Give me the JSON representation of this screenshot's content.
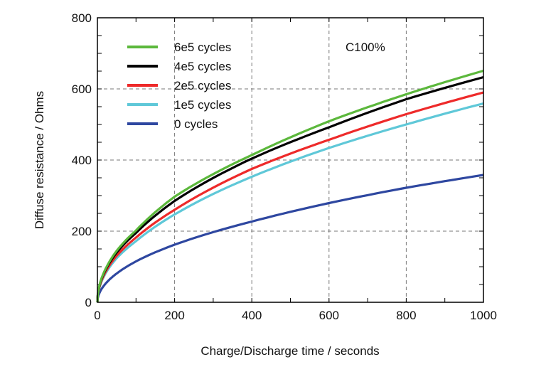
{
  "chart_data": {
    "type": "line",
    "title": "",
    "annotation": "C100%",
    "xlabel": "Charge/Discharge time /  seconds",
    "ylabel": "Diffuse resistance /  Ohms",
    "xlim": [
      0,
      1000
    ],
    "ylim": [
      0,
      800
    ],
    "xticks": [
      0,
      200,
      400,
      600,
      800,
      1000
    ],
    "yticks": [
      0,
      200,
      400,
      600,
      800
    ],
    "grid": true,
    "legend_position": "top-left",
    "x": [
      0,
      10,
      25,
      50,
      100,
      200,
      400,
      600,
      800,
      1000
    ],
    "series": [
      {
        "name": "6e5 cycles",
        "color": "#5cb83c",
        "values": [
          0,
          65,
          102,
          145,
          202,
          297,
          414,
          509,
          585,
          651
        ]
      },
      {
        "name": "4e5 cycles",
        "color": "#000000",
        "values": [
          0,
          63,
          99,
          140,
          195,
          285,
          404,
          492,
          571,
          633
        ]
      },
      {
        "name": "2e5 cycles",
        "color": "#ee2a2a",
        "values": [
          0,
          59,
          93,
          131,
          182,
          260,
          375,
          457,
          529,
          590
        ]
      },
      {
        "name": "1e5 cycles",
        "color": "#5fc8d8",
        "values": [
          0,
          56,
          88,
          124,
          172,
          247,
          353,
          434,
          500,
          559
        ]
      },
      {
        "name": "0 cycles",
        "color": "#2e47a0",
        "values": [
          0,
          36,
          57,
          81,
          115,
          162,
          227,
          279,
          322,
          358
        ]
      }
    ]
  }
}
